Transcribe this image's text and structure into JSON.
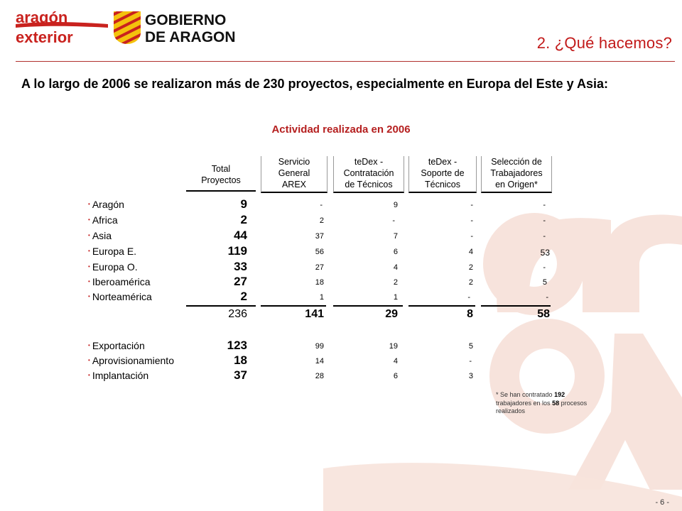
{
  "header": {
    "logo_left_line1": "aragón",
    "logo_left_line2": "exterior",
    "logo_right_line1": "GOBIERNO",
    "logo_right_line2": "DE ARAGON",
    "section_title": "2. ¿Qué hacemos?"
  },
  "intro": "A lo largo de 2006 se realizaron más de 230 proyectos, especialmente en Europa del Este y Asia:",
  "chart_title": "Actividad realizada en 2006",
  "columns": [
    {
      "l1": "Total",
      "l2": "Proyectos",
      "l3": ""
    },
    {
      "l1": "Servicio",
      "l2": "General",
      "l3": "AREX"
    },
    {
      "l1": "teDex -",
      "l2": "Contratación",
      "l3": "de Técnicos"
    },
    {
      "l1": "teDex -",
      "l2": "Soporte de",
      "l3": "Técnicos"
    },
    {
      "l1": "Selección de",
      "l2": "Trabajadores",
      "l3": "en Origen*"
    }
  ],
  "regions": [
    {
      "label": "Aragón",
      "v": [
        "9",
        "-",
        "9",
        "-",
        "-"
      ]
    },
    {
      "label": "Africa",
      "v": [
        "2",
        "2",
        "-",
        "-",
        "-"
      ]
    },
    {
      "label": "Asia",
      "v": [
        "44",
        "37",
        "7",
        "-",
        "-"
      ]
    },
    {
      "label": "Europa E.",
      "v": [
        "119",
        "56",
        "6",
        "4",
        "53"
      ]
    },
    {
      "label": "Europa O.",
      "v": [
        "33",
        "27",
        "4",
        "2",
        "-"
      ]
    },
    {
      "label": "Iberoamérica",
      "v": [
        "27",
        "18",
        "2",
        "2",
        "5"
      ]
    },
    {
      "label": "Norteamérica",
      "v": [
        "2",
        "1",
        "1",
        "-",
        "-"
      ]
    }
  ],
  "totals": [
    "236",
    "141",
    "29",
    "8",
    "58"
  ],
  "types": [
    {
      "label": "Exportación",
      "v": [
        "123",
        "99",
        "19",
        "5",
        ""
      ]
    },
    {
      "label": "Aprovisionamiento",
      "v": [
        "18",
        "14",
        "4",
        "-",
        ""
      ]
    },
    {
      "label": "Implantación",
      "v": [
        "37",
        "28",
        "6",
        "3",
        ""
      ]
    }
  ],
  "footnote": {
    "part1": "* Se han contratado ",
    "n1": "192",
    "part2": " trabajadores en los ",
    "n2": "58",
    "part3": " procesos realizados"
  },
  "page_number": "- 6 -",
  "colors": {
    "accent": "#c21a1a",
    "watermark": "#f6e1da"
  }
}
